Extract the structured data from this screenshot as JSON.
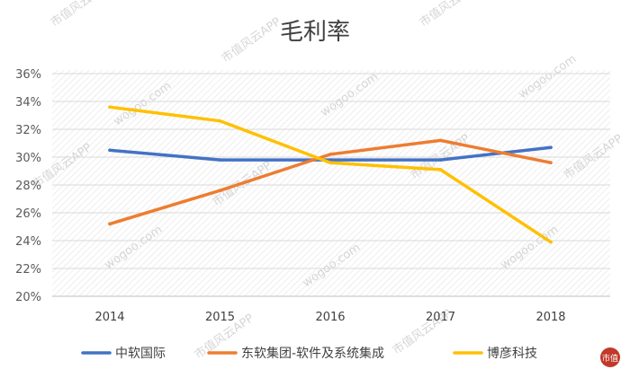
{
  "chart_data": {
    "type": "line",
    "title": "毛利率",
    "categories": [
      "2014",
      "2015",
      "2016",
      "2017",
      "2018"
    ],
    "y_tick_labels": [
      "20%",
      "22%",
      "24%",
      "26%",
      "28%",
      "30%",
      "32%",
      "34%",
      "36%"
    ],
    "ylim": [
      20,
      36
    ],
    "grid": true,
    "legend_position": "bottom",
    "series": [
      {
        "name": "中软国际",
        "color": "#4472c4",
        "values": [
          30.5,
          29.8,
          29.8,
          29.8,
          30.7
        ]
      },
      {
        "name": "东软集团-软件及系统集成",
        "color": "#ed7d31",
        "values": [
          25.2,
          27.6,
          30.2,
          31.2,
          29.6
        ]
      },
      {
        "name": "博彦科技",
        "color": "#ffc000",
        "values": [
          33.6,
          32.6,
          29.6,
          29.1,
          23.9
        ]
      }
    ]
  },
  "watermark": {
    "brand_text": "市值风云APP",
    "site_text": "wogoo.com",
    "logo_text": "市值"
  }
}
